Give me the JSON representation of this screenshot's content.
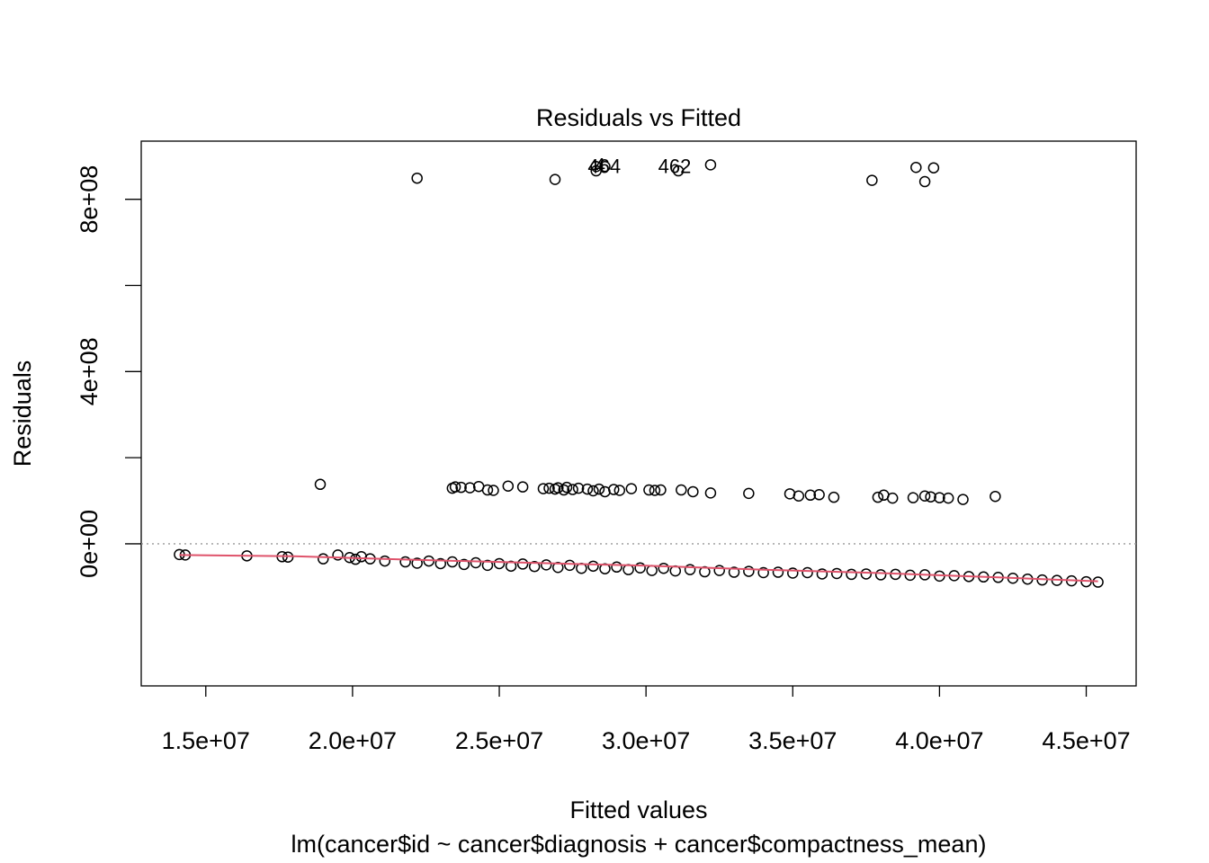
{
  "chart_data": {
    "type": "scatter",
    "title": "Residuals vs Fitted",
    "xlabel": "Fitted values",
    "subtitle": "lm(cancer$id ~ cancer$diagnosis + cancer$compactness_mean)",
    "ylabel": "Residuals",
    "xlim": [
      12800000,
      46700000
    ],
    "ylim": [
      -330000000,
      935000000
    ],
    "x_ticks": [
      {
        "value": 15000000,
        "label": "1.5e+07"
      },
      {
        "value": 20000000,
        "label": "2.0e+07"
      },
      {
        "value": 25000000,
        "label": "2.5e+07"
      },
      {
        "value": 30000000,
        "label": "3.0e+07"
      },
      {
        "value": 35000000,
        "label": "3.5e+07"
      },
      {
        "value": 40000000,
        "label": "4.0e+07"
      },
      {
        "value": 45000000,
        "label": "4.5e+07"
      }
    ],
    "y_ticks": [
      {
        "value": 0,
        "label": "0e+00"
      },
      {
        "value": 200000000,
        "label": ""
      },
      {
        "value": 400000000,
        "label": "4e+08"
      },
      {
        "value": 600000000,
        "label": ""
      },
      {
        "value": 800000000,
        "label": "8e+08"
      }
    ],
    "zero_line": 0,
    "point_groups": [
      {
        "name": "top",
        "points": [
          [
            22200000,
            849000000
          ],
          [
            26900000,
            846000000
          ],
          [
            28300000,
            876000000
          ],
          [
            28300000,
            866000000
          ],
          [
            28600000,
            876000000
          ],
          [
            31100000,
            866000000
          ],
          [
            32200000,
            880000000
          ],
          [
            37700000,
            844000000
          ],
          [
            39200000,
            874000000
          ],
          [
            39500000,
            841000000
          ],
          [
            39800000,
            873000000
          ]
        ]
      },
      {
        "name": "middle",
        "points": [
          [
            18900000,
            138000000
          ],
          [
            23400000,
            129000000
          ],
          [
            23500000,
            132000000
          ],
          [
            23700000,
            131000000
          ],
          [
            24000000,
            130000000
          ],
          [
            24300000,
            133000000
          ],
          [
            24600000,
            125000000
          ],
          [
            24800000,
            124000000
          ],
          [
            25300000,
            134000000
          ],
          [
            25800000,
            132000000
          ],
          [
            26500000,
            128000000
          ],
          [
            26700000,
            129000000
          ],
          [
            26900000,
            127000000
          ],
          [
            27000000,
            130000000
          ],
          [
            27200000,
            125000000
          ],
          [
            27300000,
            131000000
          ],
          [
            27500000,
            126000000
          ],
          [
            27700000,
            129000000
          ],
          [
            28000000,
            127000000
          ],
          [
            28200000,
            123000000
          ],
          [
            28400000,
            127000000
          ],
          [
            28600000,
            121000000
          ],
          [
            28900000,
            126000000
          ],
          [
            29100000,
            124000000
          ],
          [
            29500000,
            128000000
          ],
          [
            30100000,
            125000000
          ],
          [
            30300000,
            124000000
          ],
          [
            30500000,
            125000000
          ],
          [
            31200000,
            125000000
          ],
          [
            31600000,
            121000000
          ],
          [
            32200000,
            118000000
          ],
          [
            33500000,
            117000000
          ],
          [
            34900000,
            116000000
          ],
          [
            35200000,
            111000000
          ],
          [
            35600000,
            113000000
          ],
          [
            35900000,
            114000000
          ],
          [
            36400000,
            108000000
          ],
          [
            37900000,
            108000000
          ],
          [
            38100000,
            113000000
          ],
          [
            38400000,
            106000000
          ],
          [
            39100000,
            107000000
          ],
          [
            39500000,
            111000000
          ],
          [
            39700000,
            109000000
          ],
          [
            40000000,
            107000000
          ],
          [
            40300000,
            106000000
          ],
          [
            40800000,
            103000000
          ],
          [
            41900000,
            110000000
          ]
        ]
      },
      {
        "name": "bottom",
        "points": [
          [
            14100000,
            -25000000
          ],
          [
            14300000,
            -26000000
          ],
          [
            16400000,
            -28000000
          ],
          [
            17600000,
            -30000000
          ],
          [
            17800000,
            -31000000
          ],
          [
            19000000,
            -35000000
          ],
          [
            19500000,
            -26000000
          ],
          [
            19900000,
            -32000000
          ],
          [
            20100000,
            -36000000
          ],
          [
            20300000,
            -30000000
          ],
          [
            20600000,
            -35000000
          ],
          [
            21100000,
            -40000000
          ],
          [
            21800000,
            -42000000
          ],
          [
            22200000,
            -45000000
          ],
          [
            22600000,
            -40000000
          ],
          [
            23000000,
            -46000000
          ],
          [
            23400000,
            -42000000
          ],
          [
            23800000,
            -48000000
          ],
          [
            24200000,
            -44000000
          ],
          [
            24600000,
            -50000000
          ],
          [
            25000000,
            -46000000
          ],
          [
            25400000,
            -52000000
          ],
          [
            25800000,
            -47000000
          ],
          [
            26200000,
            -53000000
          ],
          [
            26600000,
            -49000000
          ],
          [
            27000000,
            -55000000
          ],
          [
            27400000,
            -50000000
          ],
          [
            27800000,
            -57000000
          ],
          [
            28200000,
            -52000000
          ],
          [
            28600000,
            -58000000
          ],
          [
            29000000,
            -54000000
          ],
          [
            29400000,
            -60000000
          ],
          [
            29800000,
            -56000000
          ],
          [
            30200000,
            -62000000
          ],
          [
            30600000,
            -57000000
          ],
          [
            31000000,
            -63000000
          ],
          [
            31500000,
            -60000000
          ],
          [
            32000000,
            -65000000
          ],
          [
            32500000,
            -62000000
          ],
          [
            33000000,
            -66000000
          ],
          [
            33500000,
            -64000000
          ],
          [
            34000000,
            -67000000
          ],
          [
            34500000,
            -66000000
          ],
          [
            35000000,
            -68000000
          ],
          [
            35500000,
            -67000000
          ],
          [
            36000000,
            -70000000
          ],
          [
            36500000,
            -69000000
          ],
          [
            37000000,
            -71000000
          ],
          [
            37500000,
            -70000000
          ],
          [
            38000000,
            -72000000
          ],
          [
            38500000,
            -71000000
          ],
          [
            39000000,
            -73000000
          ],
          [
            39500000,
            -72000000
          ],
          [
            40000000,
            -75000000
          ],
          [
            40500000,
            -74000000
          ],
          [
            41000000,
            -76000000
          ],
          [
            41500000,
            -77000000
          ],
          [
            42000000,
            -78000000
          ],
          [
            42500000,
            -80000000
          ],
          [
            43000000,
            -82000000
          ],
          [
            43500000,
            -84000000
          ],
          [
            44000000,
            -85000000
          ],
          [
            44500000,
            -86000000
          ],
          [
            45000000,
            -88000000
          ],
          [
            45400000,
            -89000000
          ]
        ]
      }
    ],
    "smooth_line": {
      "color": "#df536b",
      "points": [
        [
          14100000,
          -26000000
        ],
        [
          18000000,
          -29000000
        ],
        [
          22000000,
          -37000000
        ],
        [
          26000000,
          -44000000
        ],
        [
          30000000,
          -51000000
        ],
        [
          34000000,
          -60000000
        ],
        [
          38000000,
          -68000000
        ],
        [
          42000000,
          -78000000
        ],
        [
          45400000,
          -87000000
        ]
      ]
    },
    "labels": [
      {
        "text": "464",
        "x": 28700000,
        "y": 876000000
      },
      {
        "text": "462",
        "x": 31100000,
        "y": 876000000
      },
      {
        "text": "4",
        "x": 28550000,
        "y": 878000000
      }
    ],
    "point_color": "#000000",
    "grid": false
  }
}
